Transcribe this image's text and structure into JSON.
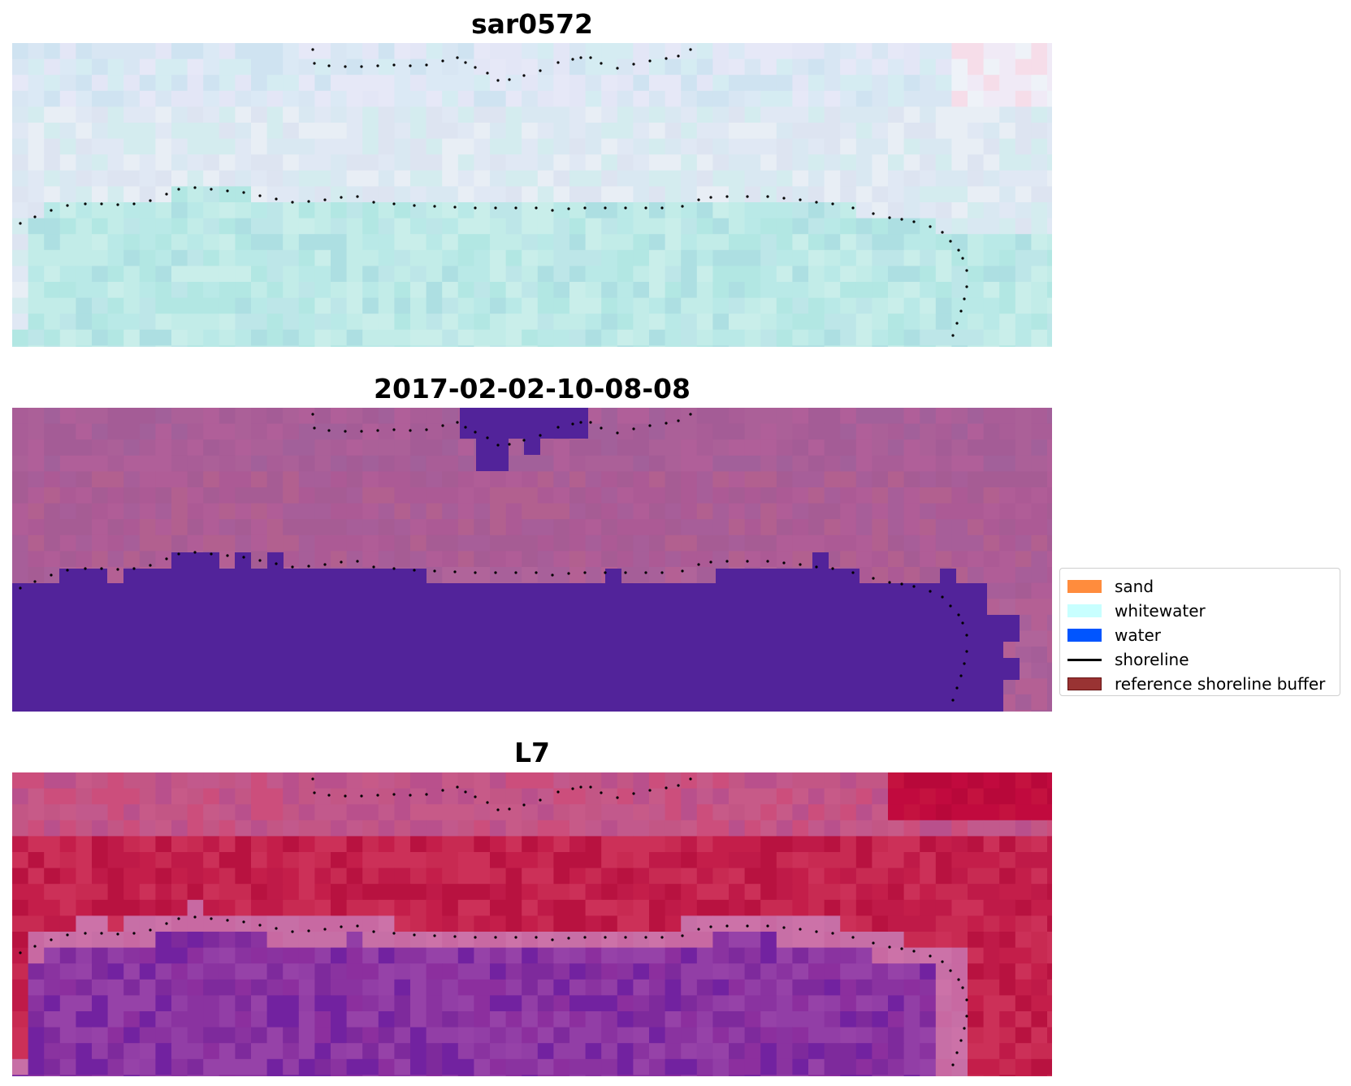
{
  "panels": [
    {
      "title": "sar0572",
      "palette": {
        "top": [
          "#dbe9f5",
          "#d8e6f3",
          "#e3e6f6",
          "#d5ecf2",
          "#cfe3f1",
          "#e6e8f7"
        ],
        "mid": [
          "#d9e8f2",
          "#e0e8f4",
          "#d4ecef",
          "#dde4f1",
          "#e8eef5"
        ],
        "bottom": [
          "#b9e9e7",
          "#b2e7e3",
          "#c2ece8",
          "#bde6e8",
          "#c9eeea",
          "#addfe2"
        ]
      },
      "mask_color": null
    },
    {
      "title": "2017-02-02-10-08-08",
      "palette": {
        "top": [
          "#a95d97",
          "#a45c96",
          "#b05f99",
          "#a2609a",
          "#ab6098"
        ],
        "mid": [
          "#b05d97",
          "#a65c94",
          "#b2608f",
          "#a75e99",
          "#ac5a95"
        ],
        "bottom": [
          "#a8609a",
          "#b46094",
          "#a55e98",
          "#b0649a"
        ]
      },
      "mask_color": "#52239a"
    },
    {
      "title": "L7",
      "palette": {
        "top": [
          "#c75a88",
          "#c35685",
          "#cc4e7c",
          "#b9508c",
          "#c2598c"
        ],
        "mid": [
          "#c41e4a",
          "#bf1a48",
          "#c82a52",
          "#b81240",
          "#cc3058"
        ],
        "bottom": [
          "#8a33a0",
          "#7e2a9c",
          "#923ea6",
          "#7222a0",
          "#9642a8",
          "#8c2f9e"
        ]
      },
      "mask_color": null
    }
  ],
  "legend": {
    "items": [
      {
        "label": "sand",
        "color": "#ff8c3d",
        "kind": "patch",
        "edge": "#ff8c3d"
      },
      {
        "label": "whitewater",
        "color": "#c8ffff",
        "kind": "patch",
        "edge": "#c8ffff"
      },
      {
        "label": "water",
        "color": "#0055ff",
        "kind": "patch",
        "edge": "#0055ff"
      },
      {
        "label": "shoreline",
        "color": "#000000",
        "kind": "line",
        "edge": "#000000"
      },
      {
        "label": "reference shoreline buffer",
        "color": "#993333",
        "kind": "patch",
        "edge": "#661111"
      }
    ]
  }
}
